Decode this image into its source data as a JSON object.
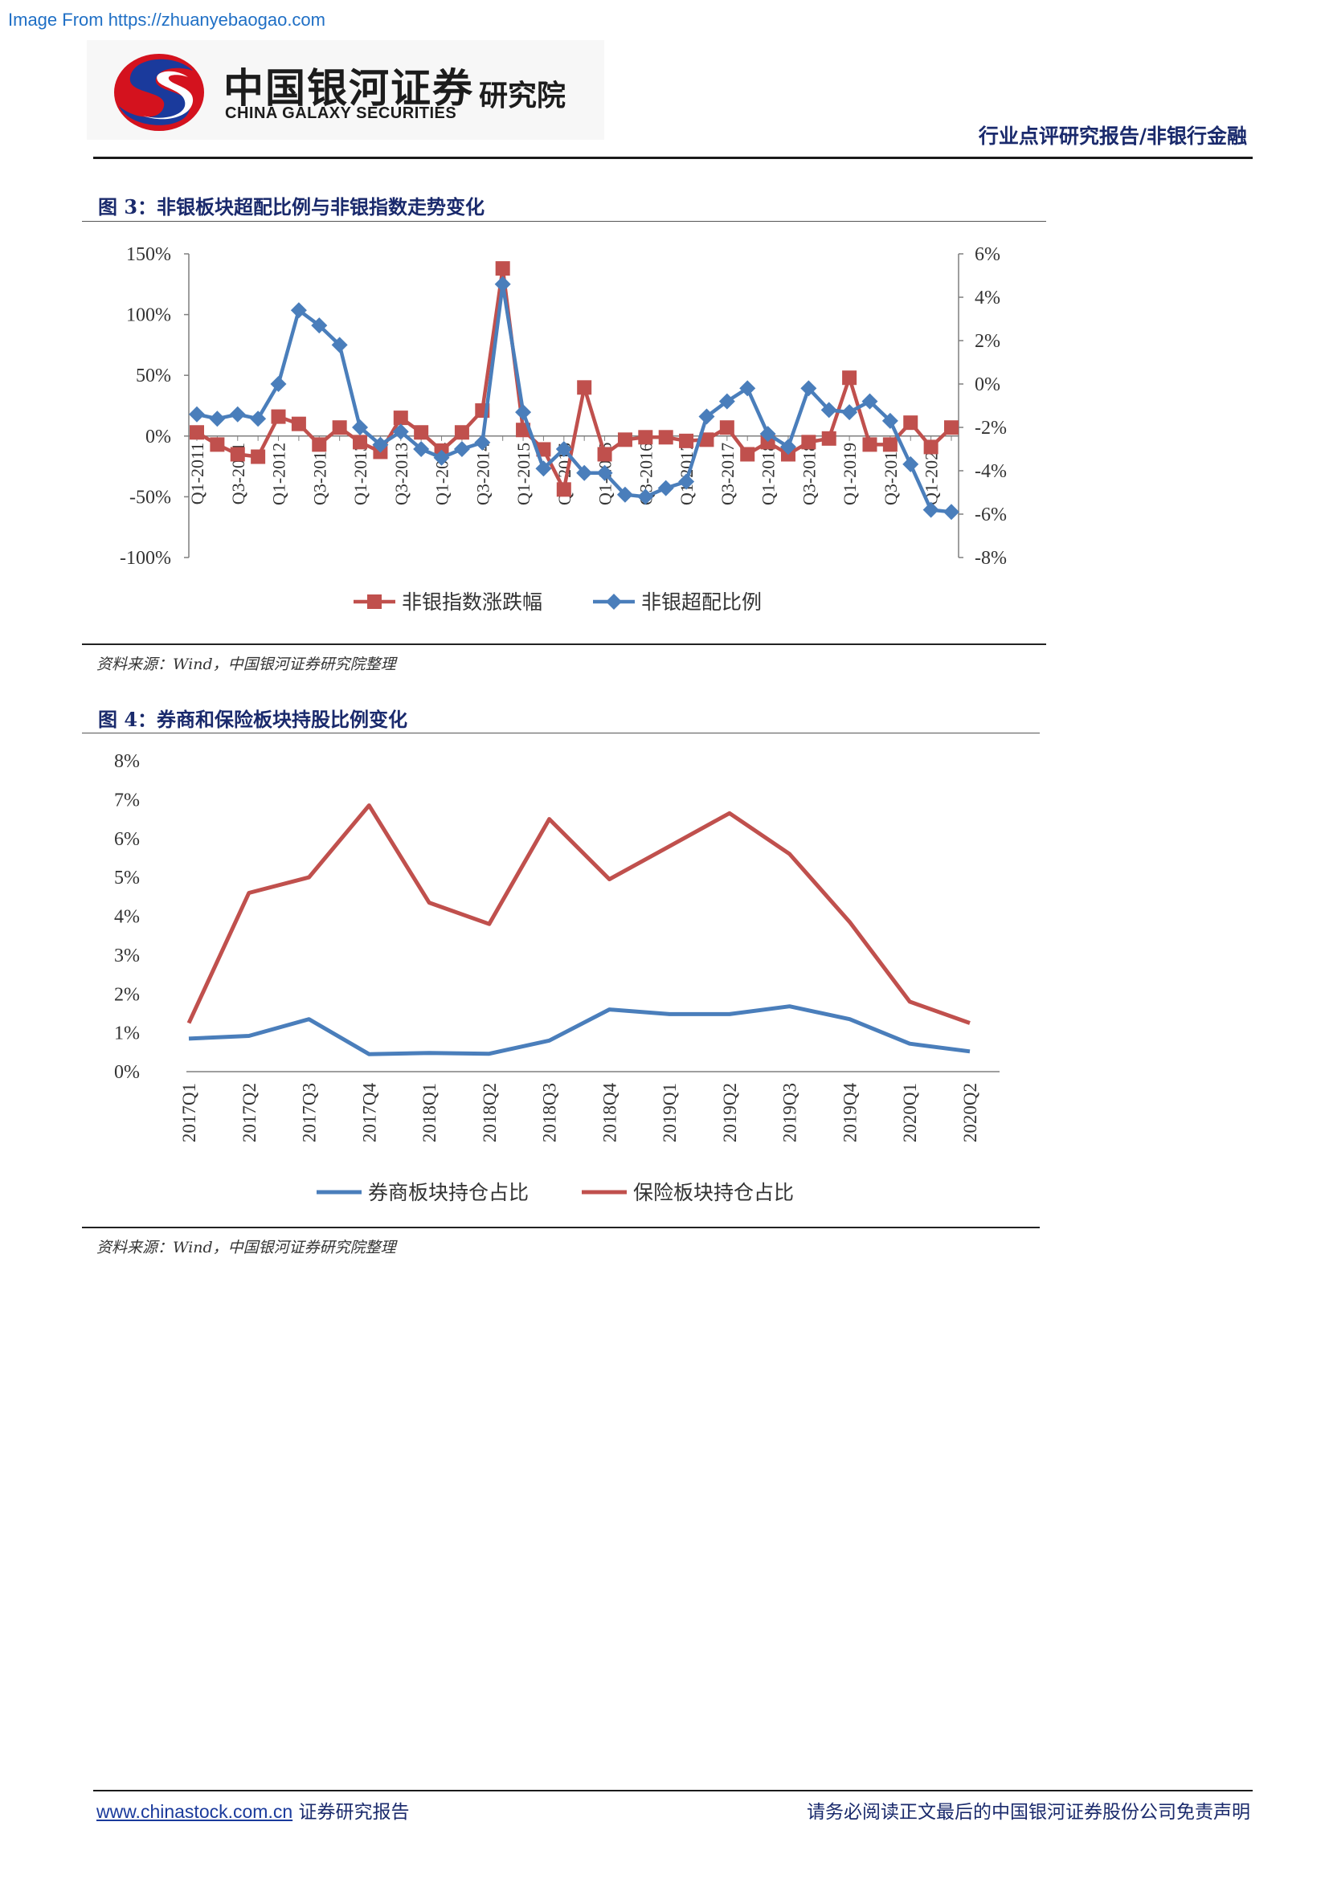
{
  "watermark": "Image From https://zhuanyebaogao.com",
  "header": {
    "logo_cn": "中国银河证券",
    "logo_en": "CHINA GALAXY SECURITIES",
    "logo_institute": "研究院",
    "report_type": "行业点评研究报告/非银行金融"
  },
  "figures": [
    {
      "title": "图 3：非银板块超配比例与非银指数走势变化",
      "source": "资料来源：Wind，中国银河证券研究院整理"
    },
    {
      "title": "图 4：券商和保险板块持股比例变化",
      "source": "资料来源：Wind，中国银河证券研究院整理"
    }
  ],
  "footer": {
    "website": "www.chinastock.com.cn",
    "website_suffix": " 证券研究报告",
    "disclaimer": "请务必阅读正文最后的中国银河证券股份公司免责声明"
  },
  "colors": {
    "red": "#c0504d",
    "blue": "#4a7ebb",
    "title": "#1a2a6c"
  },
  "chart_data": [
    {
      "type": "line",
      "x_categories": [
        "Q1-2011",
        "Q2-2011",
        "Q3-2011",
        "Q4-2011",
        "Q1-2012",
        "Q2-2012",
        "Q3-2012",
        "Q4-2012",
        "Q1-2013",
        "Q2-2013",
        "Q3-2013",
        "Q4-2013",
        "Q1-2014",
        "Q2-2014",
        "Q3-2014",
        "Q4-2014",
        "Q1-2015",
        "Q2-2015",
        "Q3-2015",
        "Q4-2015",
        "Q1-2016",
        "Q2-2016",
        "Q3-2016",
        "Q4-2016",
        "Q1-2017",
        "Q2-2017",
        "Q3-2017",
        "Q4-2017",
        "Q1-2018",
        "Q2-2018",
        "Q3-2018",
        "Q4-2018",
        "Q1-2019",
        "Q2-2019",
        "Q3-2019",
        "Q4-2019",
        "Q1-2020",
        "Q2-2020"
      ],
      "x_tick_labels": [
        "Q1-2011",
        "Q3-2011",
        "Q1-2012",
        "Q3-2012",
        "Q1-2013",
        "Q3-2013",
        "Q1-2014",
        "Q3-2014",
        "Q1-2015",
        "Q3-2015",
        "Q1-2016",
        "Q3-2016",
        "Q1-2017",
        "Q3-2017",
        "Q1-2018",
        "Q3-2018",
        "Q1-2019",
        "Q3-2019",
        "Q1-2020"
      ],
      "y_left": {
        "min": -100,
        "max": 150,
        "step": 50,
        "tick_labels": [
          "-100%",
          "-50%",
          "0%",
          "50%",
          "100%",
          "150%"
        ]
      },
      "y_right": {
        "min": -8,
        "max": 6,
        "step": 2,
        "tick_labels": [
          "-8%",
          "-6%",
          "-4%",
          "-2%",
          "0%",
          "2%",
          "4%",
          "6%"
        ]
      },
      "series": [
        {
          "name": "非银指数涨跌幅",
          "axis": "left",
          "color": "#c0504d",
          "marker": "square",
          "values": [
            3,
            -7,
            -15,
            -17,
            16,
            10,
            -7,
            7,
            -5,
            -13,
            15,
            3,
            -12,
            3,
            21,
            138,
            5,
            -11,
            -44,
            40,
            -15,
            -3,
            -1,
            -1,
            -4,
            -3,
            7,
            -15,
            -5,
            -15,
            -5,
            -2,
            48,
            -7,
            -7,
            11,
            -9,
            7
          ]
        },
        {
          "name": "非银超配比例",
          "axis": "right",
          "color": "#4a7ebb",
          "marker": "diamond",
          "values": [
            -1.4,
            -1.6,
            -1.4,
            -1.6,
            0,
            3.4,
            2.7,
            1.8,
            -2.0,
            -2.8,
            -2.2,
            -3.0,
            -3.4,
            -3.0,
            -2.7,
            4.6,
            -1.3,
            -3.9,
            -3.0,
            -4.1,
            -4.1,
            -5.1,
            -5.2,
            -4.8,
            -4.5,
            -1.5,
            -0.8,
            -0.2,
            -2.3,
            -2.9,
            -0.2,
            -1.2,
            -1.3,
            -0.8,
            -1.7,
            -3.7,
            -5.8,
            -5.9
          ]
        }
      ]
    },
    {
      "type": "line",
      "categories": [
        "2017Q1",
        "2017Q2",
        "2017Q3",
        "2017Q4",
        "2018Q1",
        "2018Q2",
        "2018Q3",
        "2018Q4",
        "2019Q1",
        "2019Q2",
        "2019Q3",
        "2019Q4",
        "2020Q1",
        "2020Q2"
      ],
      "ylim": [
        0,
        8
      ],
      "y_tick_labels": [
        "0%",
        "1%",
        "2%",
        "3%",
        "4%",
        "5%",
        "6%",
        "7%",
        "8%"
      ],
      "series": [
        {
          "name": "券商板块持仓占比",
          "color": "#4a7ebb",
          "values": [
            0.85,
            0.92,
            1.35,
            0.45,
            0.48,
            0.46,
            0.8,
            1.6,
            1.48,
            1.48,
            1.68,
            1.35,
            0.72,
            0.52
          ]
        },
        {
          "name": "保险板块持仓占比",
          "color": "#c0504d",
          "values": [
            1.25,
            4.6,
            5.0,
            6.85,
            4.35,
            3.8,
            6.5,
            4.95,
            5.8,
            6.65,
            5.6,
            3.85,
            1.8,
            1.25
          ]
        }
      ]
    }
  ]
}
